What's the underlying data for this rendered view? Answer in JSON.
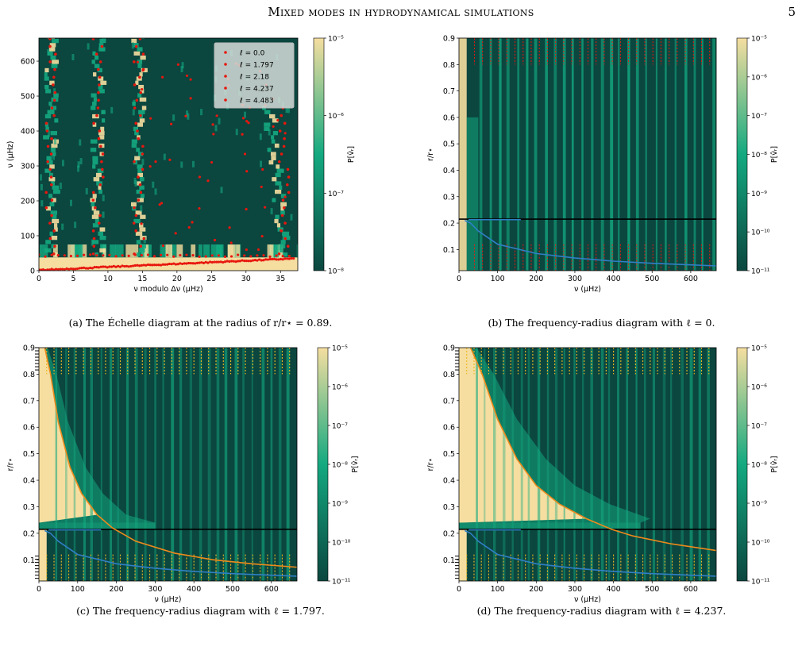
{
  "header": {
    "running_title": "Mixed modes in hydrodynamical simulations",
    "page_number": "5"
  },
  "colors": {
    "dark": "#0b463f",
    "mid": "#14a980",
    "light": "#f5dea0",
    "red": "#e8170e",
    "blue": "#2f7fc6",
    "orange": "#ee8a1b",
    "black": "#000000",
    "gold": "#efb820"
  },
  "panels": [
    {
      "id": "a",
      "caption": "(a) The Échelle diagram at the radius of r/r⋆ = 0.89.",
      "chart_data": {
        "type": "heatmap",
        "xlabel": "ν modulo Δν (μHz)",
        "ylabel": "ν (μHz)",
        "xlim": [
          0,
          37.5
        ],
        "ylim": [
          0,
          666
        ],
        "xticks": [
          "0",
          "5",
          "10",
          "15",
          "20",
          "25",
          "30",
          "35"
        ],
        "yticks": [
          "0",
          "100",
          "200",
          "300",
          "400",
          "500",
          "600"
        ],
        "colorbar": {
          "label": "P[v̂ᵣ]",
          "ticks": [
            "10⁻⁸",
            "10⁻⁷",
            "10⁻⁶",
            "10⁻⁵"
          ],
          "range_log10": [
            -8,
            -5
          ]
        },
        "legend": {
          "position": "top-right",
          "entries": [
            "ℓ = 0.0",
            "ℓ = 1.797",
            "ℓ = 2.18",
            "ℓ = 4.237",
            "ℓ = 4.483"
          ]
        },
        "ridges": [
          {
            "x": 1.8,
            "y_from": 40,
            "y_to": 666
          },
          {
            "x": 8.6,
            "y_from": 40,
            "y_to": 666
          },
          {
            "x": 14.5,
            "y_from": 40,
            "y_to": 666
          },
          {
            "x": 35.5,
            "y_from": 40,
            "y_to": 470
          }
        ],
        "overlay": "red markers of mode frequencies along the ridges"
      }
    },
    {
      "id": "b",
      "caption": "(b) The frequency-radius diagram with ℓ = 0.",
      "chart_data": {
        "type": "heatmap",
        "xlabel": "ν (μHz)",
        "ylabel": "r/r⋆",
        "xlim": [
          0,
          666
        ],
        "ylim": [
          0.02,
          0.9
        ],
        "xticks": [
          "0",
          "100",
          "200",
          "300",
          "400",
          "500",
          "600"
        ],
        "yticks": [
          "0.1",
          "0.2",
          "0.3",
          "0.4",
          "0.5",
          "0.6",
          "0.7",
          "0.8",
          "0.9"
        ],
        "colorbar": {
          "label": "P[v̂ᵣ]",
          "ticks": [
            "10⁻¹¹",
            "10⁻¹⁰",
            "10⁻⁹",
            "10⁻⁸",
            "10⁻⁷",
            "10⁻⁶",
            "10⁻⁵"
          ],
          "range_log10": [
            -11,
            -5
          ]
        },
        "interface_r": 0.215,
        "curves": [
          {
            "color": "blue",
            "points": [
              [
                15,
                0.21
              ],
              [
                30,
                0.2
              ],
              [
                50,
                0.17
              ],
              [
                100,
                0.12
              ],
              [
                200,
                0.085
              ],
              [
                300,
                0.068
              ],
              [
                400,
                0.056
              ],
              [
                500,
                0.048
              ],
              [
                600,
                0.042
              ],
              [
                666,
                0.038
              ]
            ]
          },
          {
            "color": "blue",
            "points": [
              [
                25,
                0.213
              ],
              [
                160,
                0.213
              ]
            ]
          }
        ]
      }
    },
    {
      "id": "c",
      "caption": "(c) The frequency-radius diagram with ℓ = 1.797.",
      "chart_data": {
        "type": "heatmap",
        "xlabel": "ν (μHz)",
        "ylabel": "r/r⋆",
        "xlim": [
          0,
          666
        ],
        "ylim": [
          0.02,
          0.9
        ],
        "xticks": [
          "0",
          "100",
          "200",
          "300",
          "400",
          "500",
          "600"
        ],
        "yticks": [
          "0.1",
          "0.2",
          "0.3",
          "0.4",
          "0.5",
          "0.6",
          "0.7",
          "0.8",
          "0.9"
        ],
        "colorbar": {
          "label": "P[v̂ᵣ]",
          "ticks": [
            "10⁻¹¹",
            "10⁻¹⁰",
            "10⁻⁹",
            "10⁻⁸",
            "10⁻⁷",
            "10⁻⁶",
            "10⁻⁵"
          ],
          "range_log10": [
            -11,
            -5
          ]
        },
        "interface_r": 0.215,
        "curves": [
          {
            "color": "orange",
            "points": [
              [
                15,
                0.9
              ],
              [
                30,
                0.8
              ],
              [
                50,
                0.62
              ],
              [
                80,
                0.45
              ],
              [
                110,
                0.35
              ],
              [
                150,
                0.27
              ],
              [
                190,
                0.22
              ],
              [
                250,
                0.17
              ],
              [
                350,
                0.125
              ],
              [
                450,
                0.1
              ],
              [
                550,
                0.085
              ],
              [
                666,
                0.072
              ]
            ]
          },
          {
            "color": "blue",
            "points": [
              [
                15,
                0.21
              ],
              [
                30,
                0.2
              ],
              [
                50,
                0.17
              ],
              [
                100,
                0.12
              ],
              [
                200,
                0.085
              ],
              [
                300,
                0.068
              ],
              [
                400,
                0.056
              ],
              [
                500,
                0.048
              ],
              [
                600,
                0.042
              ],
              [
                666,
                0.038
              ]
            ]
          },
          {
            "color": "blue",
            "points": [
              [
                25,
                0.213
              ],
              [
                160,
                0.213
              ]
            ]
          }
        ]
      }
    },
    {
      "id": "d",
      "caption": "(d) The frequency-radius diagram with ℓ = 4.237.",
      "chart_data": {
        "type": "heatmap",
        "xlabel": "ν (μHz)",
        "ylabel": "r/r⋆",
        "xlim": [
          0,
          666
        ],
        "ylim": [
          0.02,
          0.9
        ],
        "xticks": [
          "0",
          "100",
          "200",
          "300",
          "400",
          "500",
          "600"
        ],
        "yticks": [
          "0.1",
          "0.2",
          "0.3",
          "0.4",
          "0.5",
          "0.6",
          "0.7",
          "0.8",
          "0.9"
        ],
        "colorbar": {
          "label": "P[v̂ᵣ]",
          "ticks": [
            "10⁻¹¹",
            "10⁻¹⁰",
            "10⁻⁹",
            "10⁻⁸",
            "10⁻⁷",
            "10⁻⁶",
            "10⁻⁵"
          ],
          "range_log10": [
            -11,
            -5
          ]
        },
        "interface_r": 0.215,
        "curves": [
          {
            "color": "orange",
            "points": [
              [
                30,
                0.9
              ],
              [
                60,
                0.8
              ],
              [
                100,
                0.63
              ],
              [
                150,
                0.48
              ],
              [
                200,
                0.38
              ],
              [
                260,
                0.31
              ],
              [
                330,
                0.255
              ],
              [
                395,
                0.215
              ],
              [
                450,
                0.19
              ],
              [
                550,
                0.16
              ],
              [
                666,
                0.135
              ]
            ]
          },
          {
            "color": "blue",
            "points": [
              [
                15,
                0.21
              ],
              [
                30,
                0.2
              ],
              [
                50,
                0.17
              ],
              [
                100,
                0.12
              ],
              [
                200,
                0.085
              ],
              [
                300,
                0.068
              ],
              [
                400,
                0.056
              ],
              [
                500,
                0.048
              ],
              [
                600,
                0.042
              ],
              [
                666,
                0.038
              ]
            ]
          },
          {
            "color": "blue",
            "points": [
              [
                25,
                0.213
              ],
              [
                160,
                0.213
              ]
            ]
          }
        ]
      }
    }
  ]
}
